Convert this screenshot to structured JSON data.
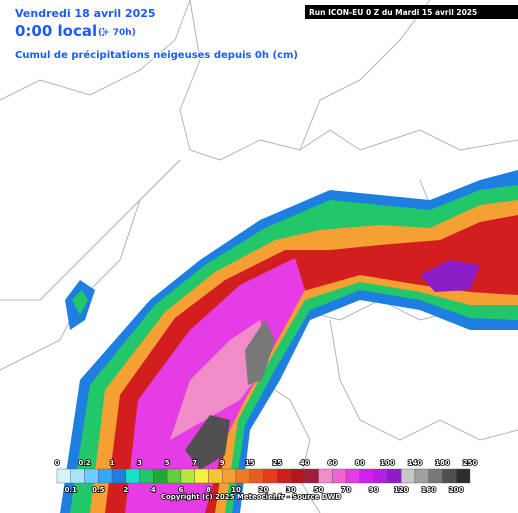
{
  "header": {
    "date": "Vendredi 18 avril 2025",
    "time": "0:00 locale",
    "lead": "(+ 70h)",
    "subtitle": "Cumul de précipitations neigeuses depuis 0h (cm)",
    "run": "Run ICON-EU 0 Z du Mardi 15 avril 2025"
  },
  "legend": {
    "ticks": [
      0,
      0.1,
      0.2,
      0.5,
      1,
      2,
      3,
      4,
      5,
      6,
      7,
      8,
      9,
      10,
      15,
      20,
      25,
      30,
      40,
      50,
      60,
      70,
      80,
      90,
      100,
      120,
      140,
      160,
      180,
      200,
      250
    ],
    "colors": [
      "#d9f2ff",
      "#a8e4ff",
      "#6ccbff",
      "#35a8f5",
      "#1e7fe0",
      "#17e0c8",
      "#22c76a",
      "#1fa83a",
      "#5fd13a",
      "#b4e63c",
      "#f2f23a",
      "#f5c832",
      "#f5a032",
      "#f07a28",
      "#e85a1e",
      "#e63c1e",
      "#d21e1e",
      "#b4141e",
      "#a01e3c",
      "#f08cc8",
      "#f064d2",
      "#e63ce6",
      "#d21ef0",
      "#b41ee6",
      "#8c1ec8",
      "#c8c8c8",
      "#a0a0a0",
      "#787878",
      "#505050",
      "#2d2d2d"
    ]
  },
  "footer": {
    "copyright": "Copyright (c) 2025 Meteociel.fr - Source DWD"
  }
}
